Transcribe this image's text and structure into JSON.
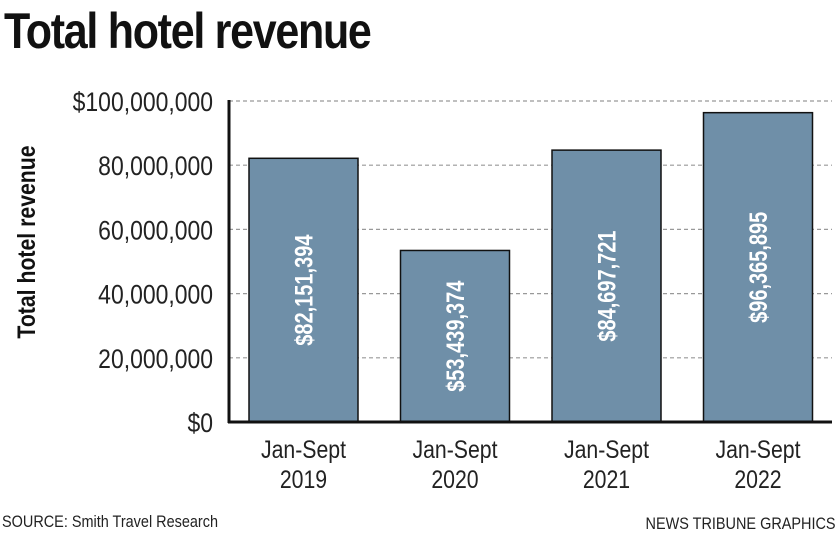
{
  "chart_data": {
    "type": "bar",
    "title": "Total hotel revenue",
    "ylabel": "Total hotel revenue",
    "xlabel": "",
    "categories": [
      [
        "Jan-Sept",
        "2019"
      ],
      [
        "Jan-Sept",
        "2020"
      ],
      [
        "Jan-Sept",
        "2021"
      ],
      [
        "Jan-Sept",
        "2022"
      ]
    ],
    "values": [
      82151394,
      53439374,
      84697721,
      96365895
    ],
    "data_labels": [
      "$82,151,394",
      "$53,439,374",
      "$84,697,721",
      "$96,365,895"
    ],
    "ylim": [
      0,
      100000000
    ],
    "yticks": [
      0,
      20000000,
      40000000,
      60000000,
      80000000,
      100000000
    ],
    "ytick_labels": [
      "$0",
      "20,000,000",
      "40,000,000",
      "60,000,000",
      "80,000,000",
      "$100,000,000"
    ],
    "grid": "horizontal dashed",
    "bar_color": "#6f8fa8"
  },
  "footer": {
    "source": "SOURCE: Smith Travel Research",
    "credit": "NEWS TRIBUNE GRAPHICS"
  }
}
